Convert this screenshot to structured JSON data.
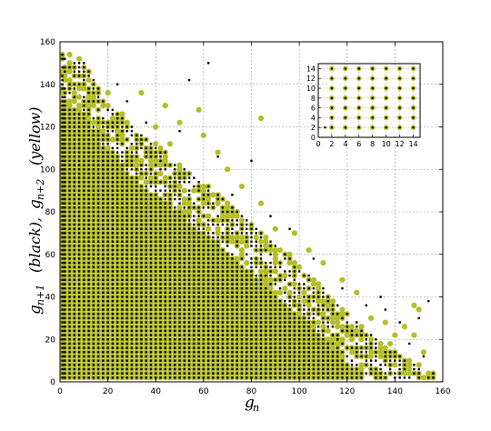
{
  "chart_data": [
    {
      "type": "scatter",
      "xlabel": "g_n",
      "ylabel": "g_{n+1}  (black),   g_{n+2}  (yellow)",
      "xlim": [
        0,
        160
      ],
      "ylim": [
        0,
        160
      ],
      "xticks": [
        "0",
        "20",
        "40",
        "60",
        "80",
        "100",
        "120",
        "140",
        "160"
      ],
      "yticks": [
        "0",
        "20",
        "40",
        "60",
        "80",
        "100",
        "120",
        "140",
        "160"
      ],
      "grid": true,
      "series": [
        {
          "name": "g_{n+1}",
          "color": "#000000",
          "marker": "small-square"
        },
        {
          "name": "g_{n+2}",
          "color": "#b5be2a",
          "marker": "circle"
        }
      ],
      "lattice_step": 2,
      "frontier": [
        [
          0,
          152
        ],
        [
          10,
          148
        ],
        [
          20,
          128
        ],
        [
          30,
          118
        ],
        [
          40,
          110
        ],
        [
          50,
          100
        ],
        [
          60,
          92
        ],
        [
          70,
          82
        ],
        [
          80,
          72
        ],
        [
          90,
          62
        ],
        [
          100,
          52
        ],
        [
          110,
          42
        ],
        [
          120,
          30
        ],
        [
          130,
          20
        ],
        [
          140,
          12
        ],
        [
          150,
          6
        ],
        [
          156,
          2
        ]
      ],
      "outliers_black": [
        [
          14,
          120
        ],
        [
          28,
          132
        ],
        [
          54,
          142
        ],
        [
          62,
          150
        ],
        [
          80,
          104
        ],
        [
          96,
          72
        ],
        [
          106,
          58
        ],
        [
          118,
          44
        ],
        [
          128,
          36
        ],
        [
          136,
          34
        ],
        [
          146,
          18
        ],
        [
          152,
          12
        ],
        [
          154,
          38
        ],
        [
          142,
          28
        ],
        [
          126,
          22
        ],
        [
          112,
          16
        ],
        [
          88,
          78
        ],
        [
          72,
          88
        ],
        [
          66,
          106
        ],
        [
          50,
          118
        ],
        [
          36,
          122
        ],
        [
          24,
          140
        ],
        [
          110,
          36
        ],
        [
          134,
          40
        ],
        [
          150,
          30
        ]
      ],
      "outliers_yellow": [
        [
          4,
          154
        ],
        [
          8,
          152
        ],
        [
          12,
          146
        ],
        [
          20,
          136
        ],
        [
          26,
          126
        ],
        [
          34,
          136
        ],
        [
          40,
          120
        ],
        [
          44,
          130
        ],
        [
          50,
          122
        ],
        [
          58,
          128
        ],
        [
          66,
          108
        ],
        [
          70,
          100
        ],
        [
          76,
          92
        ],
        [
          84,
          84
        ],
        [
          90,
          72
        ],
        [
          98,
          70
        ],
        [
          104,
          62
        ],
        [
          110,
          56
        ],
        [
          118,
          48
        ],
        [
          124,
          42
        ],
        [
          130,
          30
        ],
        [
          136,
          28
        ],
        [
          144,
          26
        ],
        [
          148,
          22
        ],
        [
          152,
          14
        ],
        [
          138,
          18
        ],
        [
          122,
          14
        ],
        [
          114,
          20
        ],
        [
          148,
          36
        ],
        [
          150,
          34
        ],
        [
          84,
          124
        ],
        [
          60,
          116
        ],
        [
          46,
          112
        ],
        [
          96,
          60
        ],
        [
          108,
          38
        ],
        [
          140,
          22
        ]
      ]
    },
    {
      "type": "scatter",
      "role": "inset",
      "xlim": [
        0,
        15
      ],
      "ylim": [
        0,
        15
      ],
      "xticks": [
        "0",
        "2",
        "4",
        "6",
        "8",
        "10",
        "12",
        "14"
      ],
      "yticks": [
        "0",
        "2",
        "4",
        "6",
        "8",
        "10",
        "12",
        "14"
      ],
      "grid": true,
      "lattice_values": [
        2,
        4,
        6,
        8,
        10,
        12,
        14
      ],
      "black_points": [
        [
          2,
          2
        ],
        [
          2,
          4
        ],
        [
          2,
          6
        ],
        [
          2,
          8
        ],
        [
          2,
          10
        ],
        [
          2,
          12
        ],
        [
          2,
          14
        ],
        [
          4,
          2
        ],
        [
          4,
          4
        ],
        [
          4,
          6
        ],
        [
          4,
          8
        ],
        [
          4,
          10
        ],
        [
          4,
          12
        ],
        [
          4,
          14
        ],
        [
          6,
          2
        ],
        [
          6,
          4
        ],
        [
          6,
          6
        ],
        [
          6,
          8
        ],
        [
          6,
          10
        ],
        [
          6,
          12
        ],
        [
          6,
          14
        ],
        [
          8,
          2
        ],
        [
          8,
          4
        ],
        [
          8,
          6
        ],
        [
          8,
          8
        ],
        [
          8,
          10
        ],
        [
          8,
          12
        ],
        [
          8,
          14
        ],
        [
          10,
          2
        ],
        [
          10,
          4
        ],
        [
          10,
          6
        ],
        [
          10,
          8
        ],
        [
          10,
          10
        ],
        [
          10,
          12
        ],
        [
          10,
          14
        ],
        [
          12,
          2
        ],
        [
          12,
          4
        ],
        [
          12,
          6
        ],
        [
          12,
          8
        ],
        [
          12,
          10
        ],
        [
          12,
          12
        ],
        [
          12,
          14
        ],
        [
          14,
          2
        ],
        [
          14,
          4
        ],
        [
          14,
          6
        ],
        [
          14,
          8
        ],
        [
          14,
          10
        ],
        [
          14,
          12
        ],
        [
          14,
          14
        ],
        [
          1,
          2
        ]
      ],
      "yellow_points": [
        [
          2,
          2
        ],
        [
          2,
          4
        ],
        [
          2,
          6
        ],
        [
          2,
          8
        ],
        [
          2,
          10
        ],
        [
          2,
          12
        ],
        [
          2,
          14
        ],
        [
          4,
          2
        ],
        [
          4,
          4
        ],
        [
          4,
          6
        ],
        [
          4,
          8
        ],
        [
          4,
          10
        ],
        [
          4,
          12
        ],
        [
          4,
          14
        ],
        [
          6,
          2
        ],
        [
          6,
          4
        ],
        [
          6,
          6
        ],
        [
          6,
          8
        ],
        [
          6,
          10
        ],
        [
          6,
          12
        ],
        [
          6,
          14
        ],
        [
          8,
          2
        ],
        [
          8,
          4
        ],
        [
          8,
          6
        ],
        [
          8,
          8
        ],
        [
          8,
          10
        ],
        [
          8,
          12
        ],
        [
          8,
          14
        ],
        [
          10,
          2
        ],
        [
          10,
          4
        ],
        [
          10,
          6
        ],
        [
          10,
          8
        ],
        [
          10,
          10
        ],
        [
          10,
          12
        ],
        [
          10,
          14
        ],
        [
          12,
          2
        ],
        [
          12,
          4
        ],
        [
          12,
          6
        ],
        [
          12,
          8
        ],
        [
          12,
          10
        ],
        [
          12,
          12
        ],
        [
          12,
          14
        ],
        [
          14,
          2
        ],
        [
          14,
          4
        ],
        [
          14,
          6
        ],
        [
          14,
          8
        ],
        [
          14,
          10
        ],
        [
          14,
          12
        ],
        [
          14,
          14
        ]
      ]
    }
  ]
}
